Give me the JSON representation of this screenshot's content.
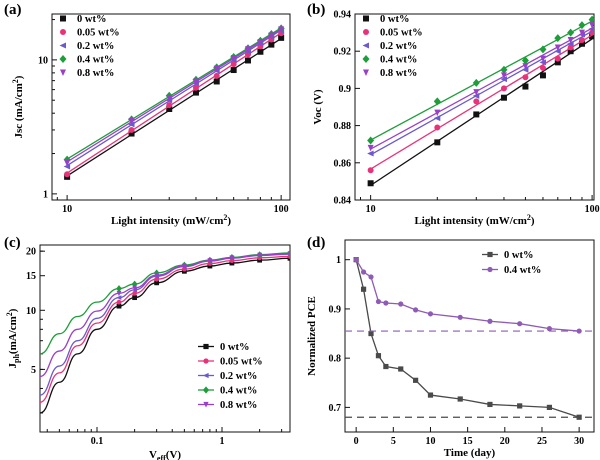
{
  "chart_data": [
    {
      "id": "a",
      "type": "scatter",
      "panel_label": "(a)",
      "xlabel": "Light intensity (mW/cm²)",
      "ylabel": "Jsc (mA/cm²)",
      "xscale": "log",
      "yscale": "log",
      "xlim": [
        8.5,
        110
      ],
      "ylim": [
        0.9,
        22
      ],
      "xticks": [
        10,
        100
      ],
      "yticks": [
        1,
        10
      ],
      "legend_position": "top-left",
      "x": [
        10,
        20,
        30,
        40,
        50,
        60,
        70,
        80,
        90,
        100
      ],
      "series": [
        {
          "name": "0 wt%",
          "marker": "square",
          "color": "#111111",
          "values": [
            1.34,
            2.82,
            4.3,
            5.7,
            6.9,
            8.4,
            9.9,
            11.5,
            13.0,
            14.6
          ]
        },
        {
          "name": "0.05 wt%",
          "marker": "circle",
          "color": "#e8337a",
          "values": [
            1.4,
            3.0,
            4.6,
            6.2,
            7.6,
            9.3,
            11.0,
            12.6,
            14.2,
            15.8
          ]
        },
        {
          "name": "0.2 wt%",
          "marker": "triangle-left",
          "color": "#6a5acd",
          "values": [
            1.6,
            3.3,
            5.0,
            6.7,
            8.3,
            10.0,
            11.6,
            13.3,
            14.9,
            16.5
          ]
        },
        {
          "name": "0.4 wt%",
          "marker": "diamond",
          "color": "#1e9e3a",
          "values": [
            1.8,
            3.6,
            5.4,
            7.1,
            8.8,
            10.5,
            12.2,
            13.9,
            15.6,
            17.2
          ]
        },
        {
          "name": "0.8 wt%",
          "marker": "triangle-down",
          "color": "#9b3fc8",
          "values": [
            1.7,
            3.5,
            5.2,
            6.9,
            8.6,
            10.3,
            12.0,
            13.6,
            15.2,
            16.9
          ]
        }
      ]
    },
    {
      "id": "b",
      "type": "scatter",
      "panel_label": "(b)",
      "xlabel": "Light intensity (mW/cm²)",
      "ylabel": "Voc (V)",
      "xscale": "log",
      "yscale": "linear",
      "xlim": [
        8.5,
        102
      ],
      "ylim": [
        0.84,
        0.94
      ],
      "xticks": [
        10,
        100
      ],
      "yticks": [
        0.84,
        0.86,
        0.88,
        0.9,
        0.92,
        0.94
      ],
      "legend_position": "top-left",
      "x": [
        10,
        20,
        30,
        40,
        50,
        60,
        70,
        80,
        90,
        100
      ],
      "series": [
        {
          "name": "0 wt%",
          "marker": "square",
          "color": "#111111",
          "values": [
            0.849,
            0.871,
            0.886,
            0.895,
            0.901,
            0.907,
            0.914,
            0.92,
            0.924,
            0.928
          ]
        },
        {
          "name": "0.05 wt%",
          "marker": "circle",
          "color": "#e8337a",
          "values": [
            0.856,
            0.879,
            0.893,
            0.9,
            0.906,
            0.911,
            0.916,
            0.922,
            0.926,
            0.93
          ]
        },
        {
          "name": "0.2 wt%",
          "marker": "triangle-left",
          "color": "#6a5acd",
          "values": [
            0.865,
            0.884,
            0.896,
            0.905,
            0.91,
            0.914,
            0.92,
            0.924,
            0.929,
            0.932
          ]
        },
        {
          "name": "0.4 wt%",
          "marker": "diamond",
          "color": "#1e9e3a",
          "values": [
            0.872,
            0.893,
            0.903,
            0.91,
            0.915,
            0.921,
            0.927,
            0.93,
            0.934,
            0.937
          ]
        },
        {
          "name": "0.8 wt%",
          "marker": "triangle-down",
          "color": "#9b3fc8",
          "values": [
            0.868,
            0.887,
            0.898,
            0.907,
            0.912,
            0.916,
            0.922,
            0.926,
            0.93,
            0.934
          ]
        }
      ]
    },
    {
      "id": "c",
      "type": "line",
      "panel_label": "(c)",
      "xlabel": "Veff(V)",
      "ylabel": "Jph(mA/cm²)",
      "xscale": "log",
      "yscale": "log",
      "xlim": [
        0.035,
        3.5
      ],
      "ylim": [
        2.4,
        21.5
      ],
      "xticks": [
        0.1,
        1
      ],
      "yticks": [
        5,
        10,
        15,
        20
      ],
      "legend_position": "bottom-right",
      "x": [
        0.035,
        0.05,
        0.07,
        0.1,
        0.15,
        0.2,
        0.3,
        0.5,
        0.8,
        1.2,
        2,
        3.5
      ],
      "series": [
        {
          "name": "0 wt%",
          "color": "#111111",
          "marker": "square",
          "values": [
            3.0,
            4.3,
            6.0,
            8.0,
            10.5,
            11.6,
            13.8,
            15.8,
            16.8,
            17.4,
            18.0,
            18.4
          ]
        },
        {
          "name": "0.05 wt%",
          "color": "#e8337a",
          "marker": "circle",
          "values": [
            3.4,
            4.8,
            6.6,
            8.6,
            11.0,
            12.2,
            14.4,
            16.2,
            17.3,
            17.9,
            18.5,
            18.8
          ]
        },
        {
          "name": "0.2 wt%",
          "color": "#6a5acd",
          "marker": "triangle-left",
          "values": [
            3.7,
            5.2,
            7.0,
            9.1,
            11.6,
            12.7,
            14.9,
            16.7,
            17.8,
            18.4,
            19.0,
            19.3
          ]
        },
        {
          "name": "0.4 wt%",
          "color": "#1e9e3a",
          "marker": "diamond",
          "values": [
            6.0,
            7.6,
            9.3,
            11.0,
            12.9,
            13.6,
            15.5,
            17.0,
            18.0,
            18.6,
            19.2,
            19.6
          ]
        },
        {
          "name": "0.8 wt%",
          "color": "#9b3fc8",
          "marker": "triangle-down",
          "values": [
            4.6,
            6.2,
            8.0,
            9.9,
            12.2,
            13.0,
            15.1,
            16.8,
            17.9,
            18.5,
            19.1,
            19.4
          ]
        }
      ]
    },
    {
      "id": "d",
      "type": "line",
      "panel_label": "(d)",
      "xlabel": "Time (day)",
      "ylabel": "Normalized PCE",
      "xscale": "linear",
      "yscale": "linear",
      "xlim": [
        -1.5,
        32
      ],
      "ylim": [
        0.65,
        1.04
      ],
      "xticks": [
        0,
        5,
        10,
        15,
        20,
        25,
        30
      ],
      "yticks": [
        0.7,
        0.8,
        0.9,
        1
      ],
      "legend_position": "top-right",
      "series": [
        {
          "name": "0 wt%",
          "color": "#4a4a4a",
          "marker": "square",
          "x": [
            0,
            1,
            2,
            3,
            4,
            6,
            8,
            10,
            14,
            18,
            22,
            26,
            30
          ],
          "values": [
            1.0,
            0.94,
            0.85,
            0.805,
            0.783,
            0.778,
            0.755,
            0.725,
            0.717,
            0.706,
            0.703,
            0.7,
            0.68
          ],
          "reference_line": 0.68
        },
        {
          "name": "0.4 wt%",
          "color": "#8e5bb5",
          "marker": "circle",
          "x": [
            0,
            1,
            2,
            3,
            4,
            6,
            8,
            10,
            14,
            18,
            22,
            26,
            30
          ],
          "values": [
            1.0,
            0.975,
            0.965,
            0.915,
            0.912,
            0.91,
            0.898,
            0.89,
            0.883,
            0.875,
            0.87,
            0.86,
            0.855
          ],
          "reference_line": 0.855
        }
      ]
    }
  ]
}
